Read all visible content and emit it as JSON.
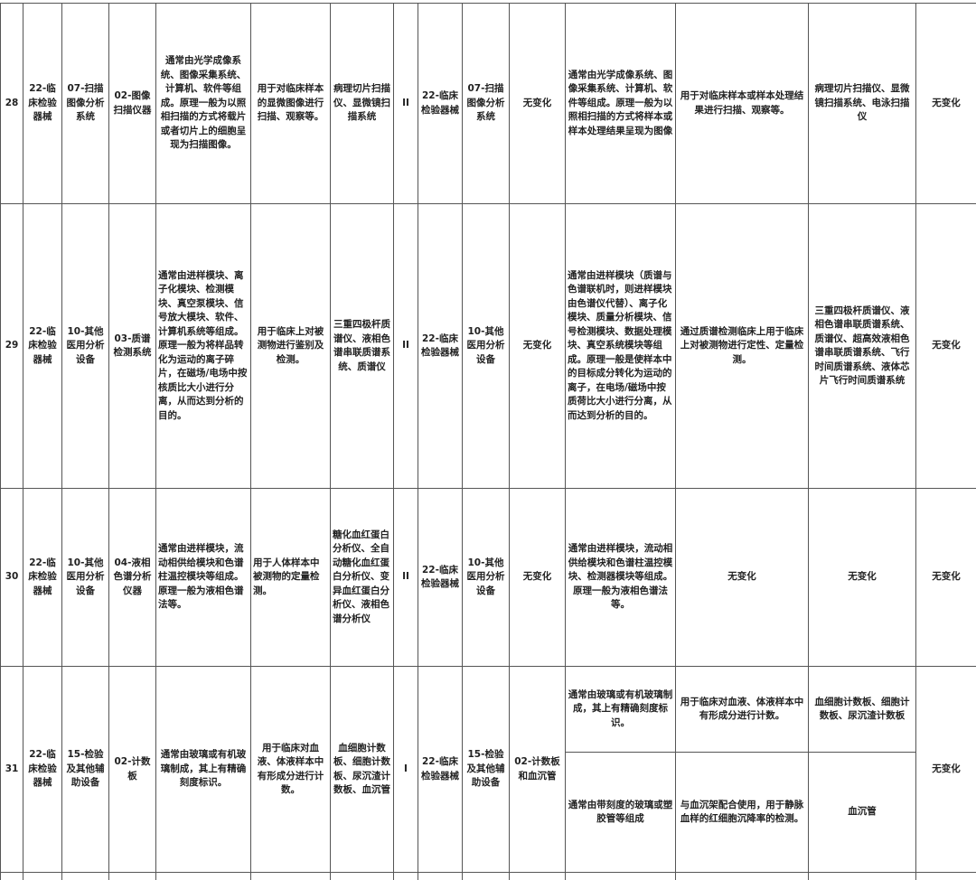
{
  "rows": [
    {
      "cells": [
        "28",
        "22-临床检验器械",
        "07-扫描图像分析系统",
        "02-图像扫描仪器",
        "通常由光学成像系统、图像采集系统、计算机、软件等组成。原理一般为以照相扫描的方式将载片或者切片上的细胞呈现为扫描图像。",
        "用于对临床样本的显微图像进行扫描、观察等。",
        "病理切片扫描仪、显微镜扫描系统",
        "II",
        "22-临床检验器械",
        "07-扫描图像分析系统",
        "无变化",
        "通常由光学成像系统、图像采集系统、计算机、软件等组成。原理一般为以照相扫描的方式将样本或样本处理结果呈现为图像",
        "用于对临床样本或样本处理结果进行扫描、观察等。",
        "病理切片扫描仪、显微镜扫描系统、电泳扫描仪",
        "无变化"
      ]
    },
    {
      "cells": [
        "29",
        "22-临床检验器械",
        "10-其他医用分析设备",
        "03-质谱检测系统",
        "通常由进样模块、离子化模块、检测模块、真空泵模块、信号放大模块、软件、计算机系统等组成。原理一般为将样品转化为运动的离子碎片，在磁场/电场中按核质比大小进行分离，从而达到分析的目的。",
        "用于临床上对被测物进行鉴别及检测。",
        "三重四极杆质谱仪、液相色谱串联质谱系统、质谱仪",
        "II",
        "22-临床检验器械",
        "10-其他医用分析设备",
        "无变化",
        "通常由进样模块（质谱与色谱联机时，则进样模块由色谱仪代替）、离子化模块、质量分析模块、信号检测模块、数据处理模块、真空系统模块等组成。原理一般是使样本中的目标成分转化为运动的离子，在电场/磁场中按质荷比大小进行分离，从而达到分析的目的。",
        "通过质谱检测临床上用于临床上对被测物进行定性、定量检测。",
        "三重四极杆质谱仪、液相色谱串联质谱系统、质谱仪、超高效液相色谱串联质谱系统、飞行时间质谱系统、液体芯片飞行时间质谱系统",
        "无变化"
      ]
    },
    {
      "cells": [
        "30",
        "22-临床检验器械",
        "10-其他医用分析设备",
        "04-液相色谱分析仪器",
        "通常由进样模块，流动相供给模块和色谱柱温控模块等组成。原理一般为液相色谱法等。",
        "用于人体样本中被测物的定量检测。",
        "糖化血红蛋白分析仪、全自动糖化血红蛋白分析仪、变异血红蛋白分析仪、液相色谱分析仪",
        "II",
        "22-临床检验器械",
        "10-其他医用分析设备",
        "无变化",
        "通常由进样模块，流动相供给模块和色谱柱温控模块、检测器模块等组成。原理一般为液相色谱法等。",
        "无变化",
        "无变化",
        "无变化"
      ]
    },
    {
      "cells": [
        "31",
        "22-临床检验器械",
        "15-检验及其他辅助设备",
        "02-计数板",
        "通常由玻璃或有机玻璃制成，其上有精确刻度标识。",
        "用于临床对血液、体液样本中有形成分进行计数。",
        "血细胞计数板、细胞计数板、尿沉渣计数板、血沉管",
        "I",
        "22-临床检验器械",
        "15-检验及其他辅助设备",
        "02-计数板和血沉管",
        "通常由玻璃或有机玻璃制成，其上有精确刻度标识。",
        "用于临床对血液、体液样本中有形成分进行计数。",
        "血细胞计数板、细胞计数板、尿沉渣计数板",
        "无变化"
      ],
      "sub": [
        "通常由带刻度的玻璃或塑胶管等组成",
        "与血沉架配合使用，用于静脉血样的红细胞沉降率的检测。",
        "血沉管"
      ]
    }
  ]
}
